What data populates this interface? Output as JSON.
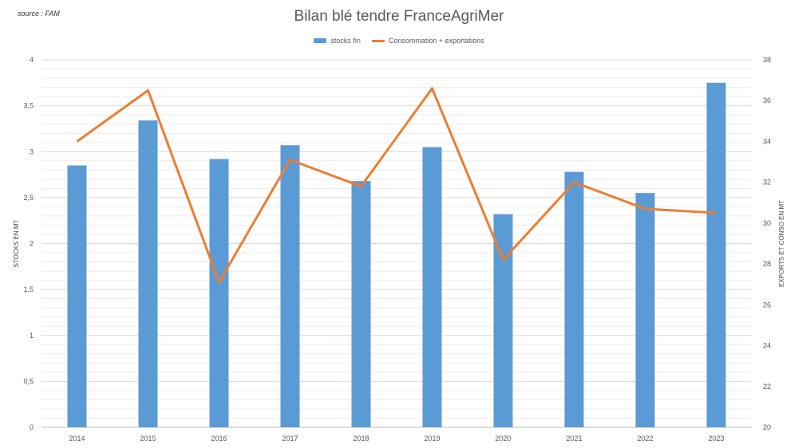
{
  "source_note": "source : FAM",
  "chart_data": {
    "type": "bar",
    "title": "Bilan blé tendre FranceAgriMer",
    "categories": [
      "2014",
      "2015",
      "2016",
      "2017",
      "2018",
      "2019",
      "2020",
      "2021",
      "2022",
      "2023"
    ],
    "series": [
      {
        "name": "stocks fin",
        "type": "bar",
        "axis": "left",
        "values": [
          2.85,
          3.34,
          2.92,
          3.07,
          2.68,
          3.05,
          2.32,
          2.78,
          2.55,
          3.75
        ]
      },
      {
        "name": "Consommation + exportations",
        "type": "line",
        "axis": "right",
        "values": [
          34.0,
          36.5,
          27.1,
          33.1,
          31.8,
          36.6,
          28.2,
          32.0,
          30.7,
          30.5
        ]
      }
    ],
    "ylabel": "STOCKS EN MT",
    "y2label": "EXPORTS ET CONSO EN MT",
    "ylim": [
      0,
      4
    ],
    "y2lim": [
      20,
      38
    ],
    "yticks": [
      "0",
      "0,5",
      "1",
      "1,5",
      "2",
      "2,5",
      "3",
      "3,5",
      "4"
    ],
    "y2ticks": [
      "20",
      "22",
      "24",
      "26",
      "28",
      "30",
      "32",
      "34",
      "36",
      "38"
    ],
    "legend_position": "top",
    "grid": true,
    "colors": {
      "bar": "#5b9bd5",
      "line": "#ed7d31",
      "grid": "#d9d9d9"
    }
  }
}
